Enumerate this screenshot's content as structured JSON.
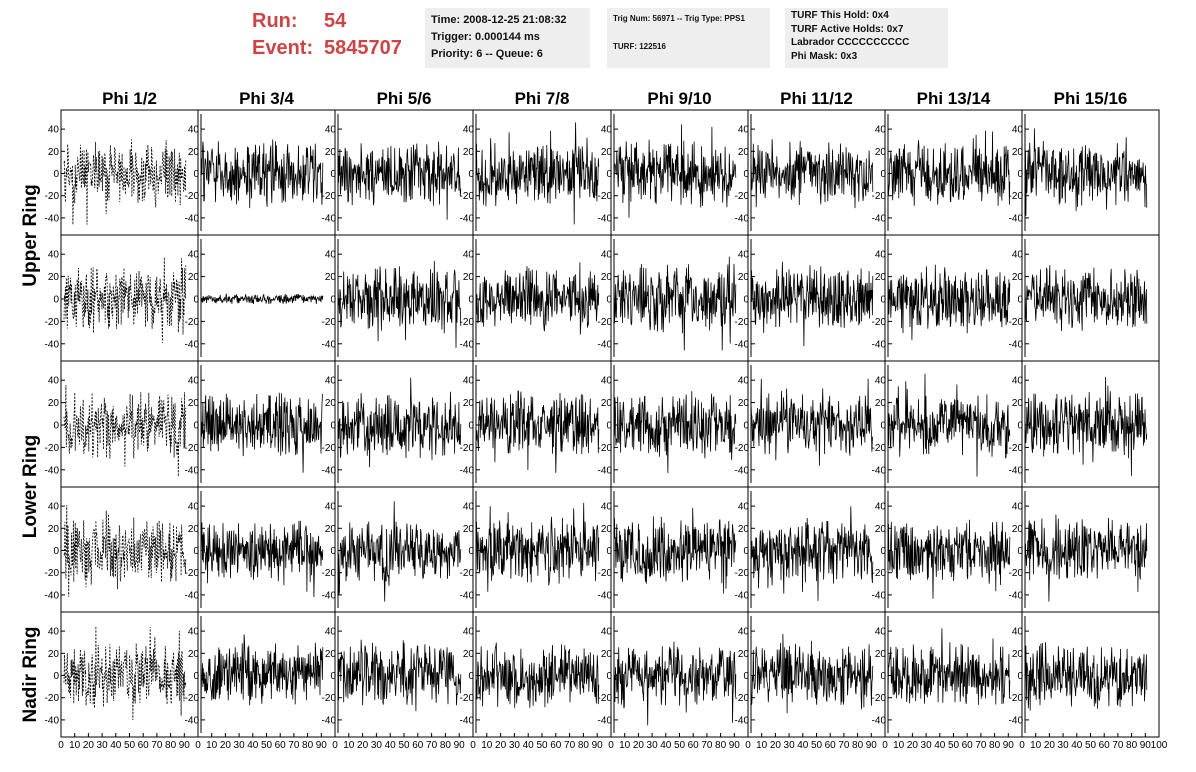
{
  "header": {
    "run_label": "Run:",
    "run_value": "54",
    "event_label": "Event:",
    "event_value": "5845707",
    "color": "#cc4444"
  },
  "info_boxes": [
    {
      "lines": [
        "Time: 2008-12-25 21:08:32",
        "Trigger: 0.000144 ms",
        "Priority: 6 -- Queue: 6"
      ]
    },
    {
      "lines": [
        "Trig Num: 56971 -- Trig Type: PPS1",
        "",
        "TURF: 122516"
      ]
    },
    {
      "lines": [
        "TURF This Hold: 0x4",
        "TURF Active Holds: 0x7",
        "Labrador CCCCCCCCCC",
        "Phi Mask: 0x3"
      ]
    }
  ],
  "chart_data": {
    "type": "line",
    "columns": [
      "Phi 1/2",
      "Phi 3/4",
      "Phi 5/6",
      "Phi 7/8",
      "Phi 9/10",
      "Phi 11/12",
      "Phi 13/14",
      "Phi 15/16"
    ],
    "rows": [
      "Upper Ring",
      "Upper Ring",
      "Lower Ring",
      "Lower Ring",
      "Nadir Ring"
    ],
    "row_labels": [
      "Upper Ring",
      "Lower Ring",
      "Nadir Ring"
    ],
    "xlim": [
      0,
      100
    ],
    "ylim": [
      -50,
      50
    ],
    "x_ticks": [
      0,
      10,
      20,
      30,
      40,
      50,
      60,
      70,
      80,
      90,
      100
    ],
    "y_ticks": [
      -40,
      -20,
      0,
      20,
      40
    ],
    "series_style": {
      "first_column": "dashed",
      "other_columns": "solid",
      "color": "#000000"
    },
    "amplitude_note_values": {
      "typical_amplitude": 20,
      "quiet_panel_amplitude": 3
    },
    "quiet_panels": [
      [
        1,
        1
      ]
    ]
  }
}
